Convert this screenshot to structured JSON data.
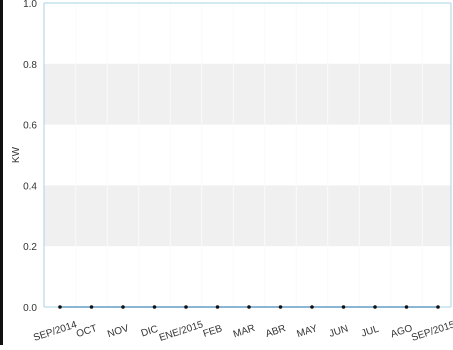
{
  "chart_data": {
    "type": "line",
    "title": "",
    "xlabel": "",
    "ylabel": "KW",
    "ylim": [
      0,
      1
    ],
    "yticks": [
      "0.0",
      "0.2",
      "0.4",
      "0.6",
      "0.8",
      "1.0"
    ],
    "categories": [
      "SEP/2014",
      "OCT",
      "NOV",
      "DIC",
      "ENE/2015",
      "FEB",
      "MAR",
      "ABR",
      "MAY",
      "JUN",
      "JUL",
      "AGO",
      "SEP/2015"
    ],
    "series": [
      {
        "values": [
          0,
          0,
          0,
          0,
          0,
          0,
          0,
          0,
          0,
          0,
          0,
          0,
          0
        ]
      }
    ],
    "grid": true,
    "legend": "none"
  }
}
